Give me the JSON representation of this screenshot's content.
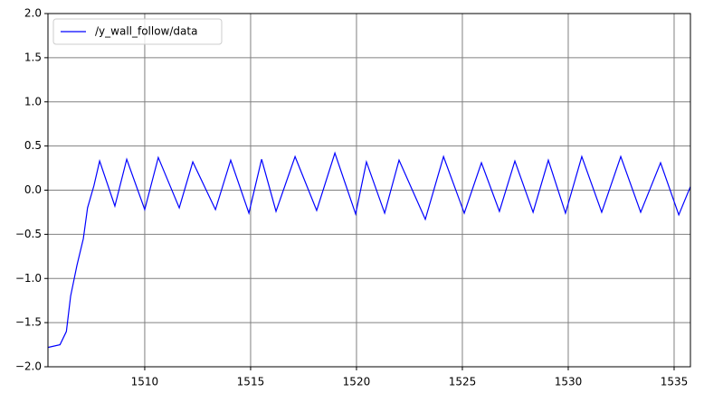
{
  "chart_data": {
    "type": "line",
    "x": [
      1505.45,
      1506.0,
      1506.3,
      1506.5,
      1506.8,
      1507.1,
      1507.3,
      1507.6,
      1507.87,
      1508.59,
      1509.15,
      1510.0,
      1510.64,
      1511.63,
      1512.27,
      1513.34,
      1514.06,
      1514.92,
      1515.52,
      1516.2,
      1517.1,
      1518.12,
      1518.98,
      1519.96,
      1520.47,
      1521.33,
      1522.01,
      1523.25,
      1524.11,
      1525.09,
      1525.9,
      1526.75,
      1527.48,
      1528.34,
      1529.06,
      1529.87,
      1530.64,
      1531.58,
      1532.48,
      1533.42,
      1534.36,
      1535.22,
      1535.77
    ],
    "series": [
      {
        "name": "/y_wall_follow/data",
        "color": "#0000ff",
        "values": [
          -1.78,
          -1.75,
          -1.6,
          -1.2,
          -0.85,
          -0.55,
          -0.2,
          0.05,
          0.33,
          -0.18,
          0.35,
          -0.22,
          0.37,
          -0.2,
          0.32,
          -0.22,
          0.34,
          -0.26,
          0.35,
          -0.24,
          0.38,
          -0.23,
          0.42,
          -0.27,
          0.32,
          -0.26,
          0.34,
          -0.33,
          0.38,
          -0.26,
          0.31,
          -0.24,
          0.33,
          -0.25,
          0.34,
          -0.26,
          0.38,
          -0.25,
          0.38,
          -0.25,
          0.31,
          -0.28,
          0.04
        ]
      }
    ],
    "xlim": [
      1505.43,
      1535.77
    ],
    "xticks": [
      1510,
      1515,
      1520,
      1525,
      1530,
      1535
    ],
    "ylim": [
      -2,
      2
    ],
    "yticks": [
      {
        "value": -2,
        "label": "−2.0"
      },
      {
        "value": -1.5,
        "label": "−1.5"
      },
      {
        "value": -1,
        "label": "−1.0"
      },
      {
        "value": -0.5,
        "label": "−0.5"
      },
      {
        "value": 0,
        "label": "0.0"
      },
      {
        "value": 0.5,
        "label": "0.5"
      },
      {
        "value": 1,
        "label": "1.0"
      },
      {
        "value": 1.5,
        "label": "1.5"
      },
      {
        "value": 2,
        "label": "2.0"
      }
    ],
    "grid": true,
    "grid_color": "#808080",
    "legend": "upper left"
  }
}
